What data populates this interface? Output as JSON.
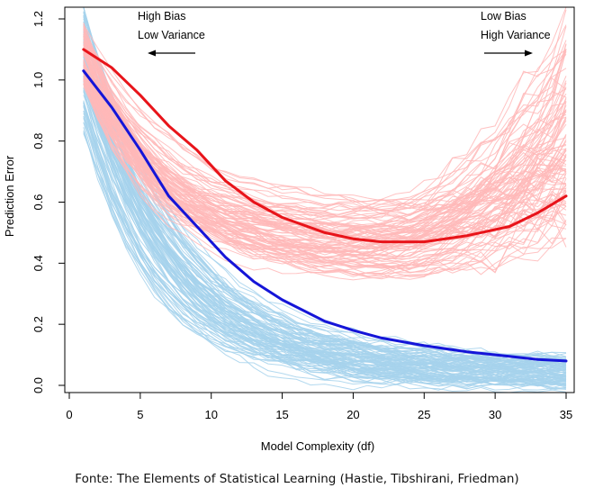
{
  "chart_data": {
    "type": "line",
    "xlabel": "Model Complexity (df)",
    "ylabel": "Prediction Error",
    "xlim": [
      0,
      35
    ],
    "ylim": [
      0,
      1.2
    ],
    "x_ticks": [
      0,
      5,
      10,
      15,
      20,
      25,
      30,
      35
    ],
    "y_ticks": [
      0.0,
      0.2,
      0.4,
      0.6,
      0.8,
      1.0,
      1.2
    ],
    "grid": false,
    "annotations": [
      {
        "lines": [
          "High Bias",
          "Low Variance"
        ],
        "arrow": "left"
      },
      {
        "lines": [
          "Low Bias",
          "High Variance"
        ],
        "arrow": "right"
      }
    ],
    "x": [
      1,
      3,
      5,
      7,
      9,
      11,
      13,
      15,
      18,
      20,
      22,
      25,
      28,
      31,
      33,
      35
    ],
    "series": [
      {
        "color": "#1515d8",
        "style": "bold",
        "values": [
          1.03,
          0.91,
          0.77,
          0.62,
          0.52,
          0.42,
          0.34,
          0.28,
          0.21,
          0.18,
          0.155,
          0.13,
          0.11,
          0.095,
          0.085,
          0.08
        ]
      },
      {
        "color": "#e8141a",
        "style": "bold",
        "values": [
          1.1,
          1.04,
          0.95,
          0.85,
          0.77,
          0.67,
          0.6,
          0.55,
          0.5,
          0.48,
          0.47,
          0.47,
          0.49,
          0.52,
          0.565,
          0.62
        ]
      }
    ],
    "simulation_bands": [
      {
        "color": "#a6d2ec",
        "count": 100
      },
      {
        "color": "#ffb8b8",
        "count": 100
      }
    ]
  },
  "caption": "Fonte: The Elements of Statistical Learning (Hastie, Tibshirani, Friedman)"
}
